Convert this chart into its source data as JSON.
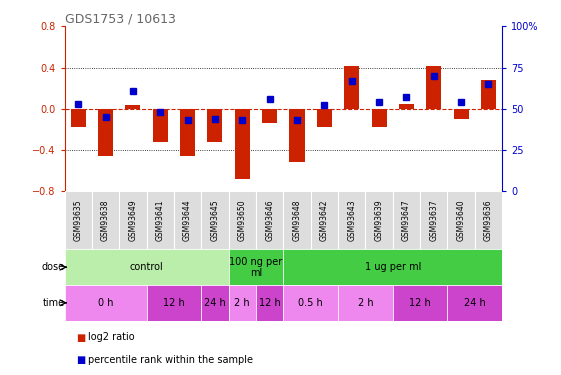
{
  "title": "GDS1753 / 10613",
  "samples": [
    "GSM93635",
    "GSM93638",
    "GSM93649",
    "GSM93641",
    "GSM93644",
    "GSM93645",
    "GSM93650",
    "GSM93646",
    "GSM93648",
    "GSM93642",
    "GSM93643",
    "GSM93639",
    "GSM93647",
    "GSM93637",
    "GSM93640",
    "GSM93636"
  ],
  "log2_ratio": [
    -0.18,
    -0.46,
    0.04,
    -0.32,
    -0.46,
    -0.32,
    -0.68,
    -0.14,
    -0.52,
    -0.18,
    0.41,
    -0.18,
    0.05,
    0.41,
    -0.1,
    0.28
  ],
  "percentile": [
    53,
    45,
    61,
    48,
    43,
    44,
    43,
    56,
    43,
    52,
    67,
    54,
    57,
    70,
    54,
    65
  ],
  "ylim_left": [
    -0.8,
    0.8
  ],
  "ylim_right": [
    0,
    100
  ],
  "yticks_left": [
    -0.8,
    -0.4,
    0.0,
    0.4,
    0.8
  ],
  "yticks_right": [
    0,
    25,
    50,
    75,
    100
  ],
  "bar_color": "#cc2200",
  "dot_color": "#0000cc",
  "dose_groups": [
    {
      "label": "control",
      "start": 0,
      "end": 6,
      "color": "#bbeeaa"
    },
    {
      "label": "100 ng per\nml",
      "start": 6,
      "end": 8,
      "color": "#44cc44"
    },
    {
      "label": "1 ug per ml",
      "start": 8,
      "end": 16,
      "color": "#44cc44"
    }
  ],
  "time_groups": [
    {
      "label": "0 h",
      "start": 0,
      "end": 3,
      "color": "#ee88ee"
    },
    {
      "label": "12 h",
      "start": 3,
      "end": 5,
      "color": "#cc44cc"
    },
    {
      "label": "24 h",
      "start": 5,
      "end": 6,
      "color": "#cc44cc"
    },
    {
      "label": "2 h",
      "start": 6,
      "end": 7,
      "color": "#ee88ee"
    },
    {
      "label": "12 h",
      "start": 7,
      "end": 8,
      "color": "#cc44cc"
    },
    {
      "label": "0.5 h",
      "start": 8,
      "end": 10,
      "color": "#ee88ee"
    },
    {
      "label": "2 h",
      "start": 10,
      "end": 12,
      "color": "#ee88ee"
    },
    {
      "label": "12 h",
      "start": 12,
      "end": 14,
      "color": "#cc44cc"
    },
    {
      "label": "24 h",
      "start": 14,
      "end": 16,
      "color": "#cc44cc"
    }
  ],
  "title_color": "#666666",
  "left_axis_color": "#cc2200",
  "right_axis_color": "#0000cc",
  "sample_bg_color": "#cccccc",
  "sample_cell_color": "#dddddd"
}
